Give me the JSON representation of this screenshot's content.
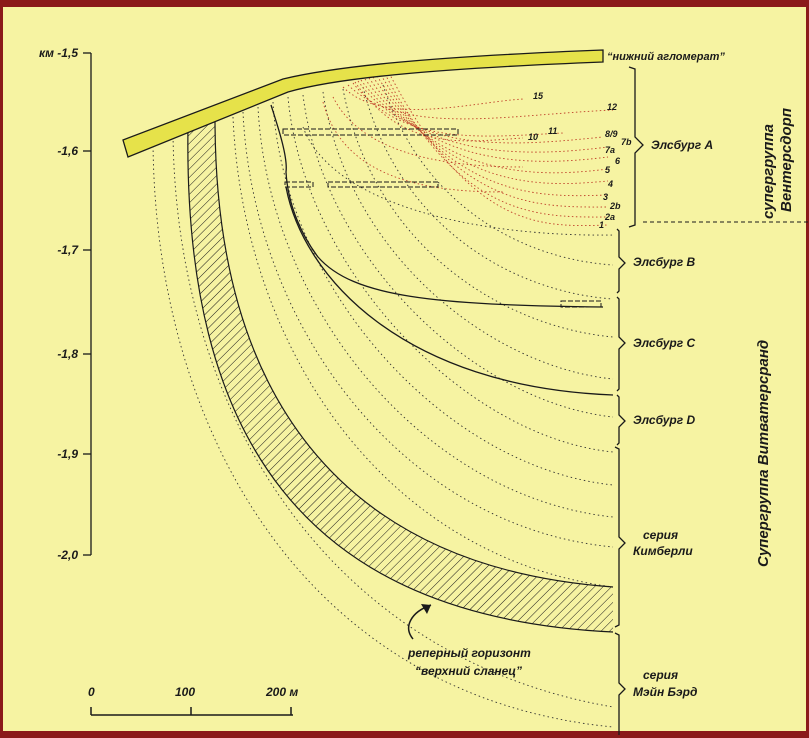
{
  "axis": {
    "ticks": [
      {
        "label": "км -1,5",
        "value": -1.5
      },
      {
        "label": "-1,6",
        "value": -1.6
      },
      {
        "label": "-1,7",
        "value": -1.7
      },
      {
        "label": "-1,8",
        "value": -1.8
      },
      {
        "label": "-1,9",
        "value": -1.9
      },
      {
        "label": "-2,0",
        "value": -2.0
      }
    ]
  },
  "labels": {
    "lower_agglomerate": "“нижний агломерат”",
    "marker_line1": "реперный горизонт",
    "marker_line2": "“верхний сланец”"
  },
  "units": {
    "elsburg_a": "Элсбург А",
    "elsburg_b": "Элсбург В",
    "elsburg_c": "Элсбург С",
    "elsburg_d": "Элсбург D",
    "kimberley_1": "серия",
    "kimberley_2": "Кимберли",
    "main_bird_1": "серия",
    "main_bird_2": "Мэйн Бэрд"
  },
  "supergroups": {
    "ventersdorp_1": "супергруппа",
    "ventersdorp_2": "Вентерсдорп",
    "witwatersrand": "Супергруппа Витватерсранд"
  },
  "beds": [
    "15",
    "12",
    "11",
    "10",
    "8/9",
    "7b",
    "7a",
    "6",
    "5",
    "4",
    "3",
    "2b",
    "2a",
    "1"
  ],
  "scale": {
    "labels": [
      "0",
      "100",
      "200 м"
    ]
  },
  "colors": {
    "background": "#f6f3a2",
    "frame": "#8b1a1a",
    "agglomerate": "#e6e24a",
    "beds_red": "#c0402a",
    "lines": "#1a1a1a"
  }
}
